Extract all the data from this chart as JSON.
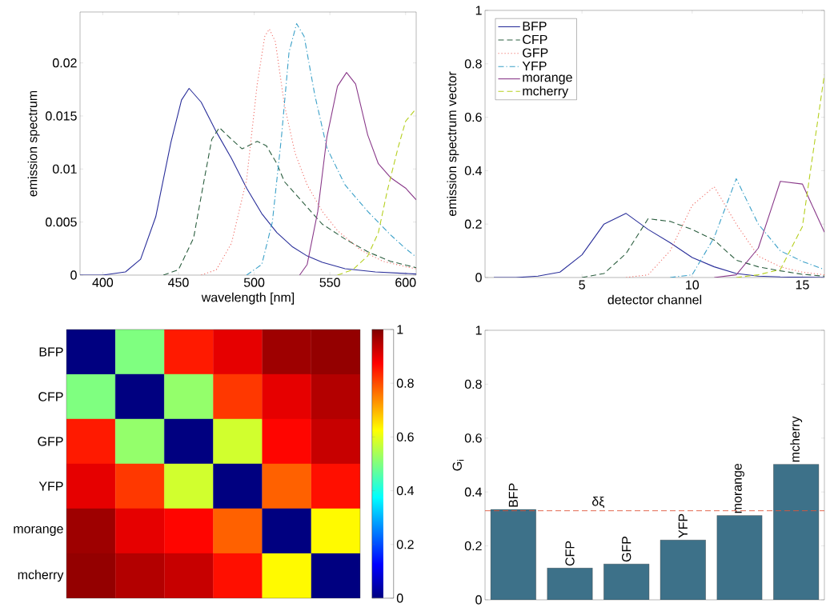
{
  "chart_data": [
    {
      "type": "line",
      "xlabel": "wavelength [nm]",
      "ylabel": "emission spectrum",
      "xlim": [
        385,
        607
      ],
      "ylim": [
        0,
        0.0248
      ],
      "xticks": [
        400,
        450,
        500,
        550,
        600
      ],
      "yticks": [
        0,
        0.005,
        0.01,
        0.015,
        0.02
      ],
      "series": [
        {
          "color": "#2a2f9a",
          "line_style": "solid",
          "x": [
            385,
            400,
            415,
            425,
            435,
            445,
            452,
            457,
            465,
            475,
            485,
            495,
            505,
            515,
            525,
            535,
            545,
            560,
            580,
            607
          ],
          "values": [
            0,
            0,
            0.0003,
            0.0015,
            0.0055,
            0.0125,
            0.0165,
            0.0176,
            0.0163,
            0.0135,
            0.011,
            0.0082,
            0.0058,
            0.004,
            0.0027,
            0.0018,
            0.0012,
            0.0006,
            0.0003,
            0.0001
          ]
        },
        {
          "color": "#2b5e3f",
          "line_style": "dashed",
          "x": [
            440,
            450,
            460,
            467,
            472,
            477,
            485,
            492,
            502,
            508,
            515,
            520,
            530,
            545,
            560,
            575,
            590,
            607
          ],
          "values": [
            0,
            0.0005,
            0.0035,
            0.009,
            0.0128,
            0.0139,
            0.0128,
            0.0119,
            0.0126,
            0.0122,
            0.0105,
            0.0088,
            0.0072,
            0.0048,
            0.0034,
            0.0022,
            0.0013,
            0.0007
          ]
        },
        {
          "color": "#f0706a",
          "line_style": "dotted",
          "x": [
            465,
            475,
            485,
            495,
            502,
            507,
            510,
            514,
            520,
            527,
            535,
            545,
            555,
            570,
            585,
            600,
            607
          ],
          "values": [
            0,
            0.0005,
            0.003,
            0.009,
            0.018,
            0.0225,
            0.0232,
            0.022,
            0.016,
            0.0115,
            0.0085,
            0.006,
            0.0042,
            0.0024,
            0.0013,
            0.0008,
            0.0006
          ]
        },
        {
          "color": "#3aa0c8",
          "line_style": "dashdot",
          "x": [
            495,
            505,
            512,
            518,
            523,
            528,
            533,
            540,
            548,
            560,
            575,
            590,
            600,
            607
          ],
          "values": [
            0,
            0.001,
            0.005,
            0.013,
            0.021,
            0.0237,
            0.0225,
            0.017,
            0.012,
            0.0085,
            0.006,
            0.0038,
            0.0025,
            0.0017
          ]
        },
        {
          "color": "#8a3a8a",
          "line_style": "solid",
          "x": [
            530,
            535,
            542,
            548,
            555,
            561,
            567,
            575,
            582,
            590,
            600,
            607
          ],
          "values": [
            0,
            0.001,
            0.006,
            0.013,
            0.0178,
            0.0191,
            0.018,
            0.0132,
            0.0105,
            0.0092,
            0.0082,
            0.0071
          ]
        },
        {
          "color": "#b5cf1e",
          "line_style": "dashed",
          "x": [
            555,
            565,
            575,
            582,
            588,
            595,
            600,
            607
          ],
          "values": [
            0,
            0.0005,
            0.0018,
            0.004,
            0.008,
            0.012,
            0.0145,
            0.0157
          ]
        }
      ]
    },
    {
      "type": "line",
      "xlabel": "detector channel",
      "ylabel": "emission spectrum vector",
      "xlim": [
        0.6,
        16
      ],
      "ylim": [
        0,
        1
      ],
      "xticks": [
        5,
        10,
        15
      ],
      "yticks": [
        0,
        0.2,
        0.4,
        0.6,
        0.8,
        1
      ],
      "legend": "top left",
      "x": [
        1,
        2,
        3,
        4,
        5,
        6,
        7,
        8,
        9,
        10,
        11,
        12,
        13,
        14,
        15,
        16
      ],
      "series": [
        {
          "name": "BFP",
          "color": "#2a2f9a",
          "line_style": "solid",
          "values": [
            0,
            0,
            0.005,
            0.02,
            0.085,
            0.2,
            0.24,
            0.18,
            0.13,
            0.075,
            0.04,
            0.015,
            0.005,
            0.002,
            0.001,
            0
          ]
        },
        {
          "name": "CFP",
          "color": "#2b5e3f",
          "line_style": "dashed",
          "values": [
            null,
            null,
            null,
            null,
            0,
            0.015,
            0.09,
            0.22,
            0.21,
            0.18,
            0.14,
            0.065,
            0.04,
            0.025,
            0.012,
            0.005
          ]
        },
        {
          "name": "GFP",
          "color": "#f0706a",
          "line_style": "dotted",
          "values": [
            null,
            null,
            null,
            null,
            null,
            null,
            0,
            0.01,
            0.1,
            0.27,
            0.34,
            0.2,
            0.08,
            0.04,
            0.02,
            0.01
          ]
        },
        {
          "name": "YFP",
          "color": "#3aa0c8",
          "line_style": "dashdot",
          "values": [
            null,
            null,
            null,
            null,
            null,
            null,
            null,
            null,
            0,
            0.01,
            0.15,
            0.37,
            0.2,
            0.1,
            0.06,
            0.03
          ]
        },
        {
          "name": "morange",
          "color": "#8a3a8a",
          "line_style": "solid",
          "values": [
            null,
            null,
            null,
            null,
            null,
            null,
            null,
            null,
            null,
            null,
            0,
            0.01,
            0.11,
            0.36,
            0.35,
            0.17
          ]
        },
        {
          "name": "mcherry",
          "color": "#b5cf1e",
          "line_style": "dashed",
          "values": [
            null,
            null,
            null,
            null,
            null,
            null,
            null,
            null,
            null,
            null,
            null,
            0,
            0.01,
            0.03,
            0.19,
            0.76
          ]
        }
      ]
    },
    {
      "type": "heatmap",
      "categories": [
        null,
        null,
        null,
        null,
        null,
        null
      ],
      "y_categories": [
        "BFP",
        "CFP",
        "GFP",
        "YFP",
        "morange",
        "mcherry"
      ],
      "cells": [
        [
          0,
          0.5,
          0.85,
          0.9,
          0.97,
          0.98
        ],
        [
          0.5,
          0,
          0.52,
          0.82,
          0.9,
          0.95
        ],
        [
          0.85,
          0.52,
          0,
          0.58,
          0.87,
          0.93
        ],
        [
          0.9,
          0.82,
          0.58,
          0,
          0.78,
          0.86
        ],
        [
          0.97,
          0.9,
          0.87,
          0.78,
          0,
          0.63
        ],
        [
          0.98,
          0.95,
          0.93,
          0.86,
          0.63,
          0
        ]
      ],
      "clim": [
        0,
        1
      ],
      "cticks": [
        0,
        0.2,
        0.4,
        0.6,
        0.8,
        1
      ]
    },
    {
      "type": "bar",
      "ylabel": "G$_{i}$",
      "categories": [
        "BFP",
        "CFP",
        "GFP",
        "YFP",
        "morange",
        "mcherry"
      ],
      "values": [
        0.335,
        0.118,
        0.133,
        0.222,
        0.313,
        0.503
      ],
      "color": "#3d7189",
      "ylim": [
        0,
        1
      ],
      "yticks": [
        0,
        0.2,
        0.4,
        0.6,
        0.8,
        1
      ],
      "ref_lines": [
        {
          "axis": "y",
          "value": 0.33,
          "label": "δξ",
          "color": "#e0553a",
          "line_style": "dashed"
        }
      ]
    }
  ]
}
